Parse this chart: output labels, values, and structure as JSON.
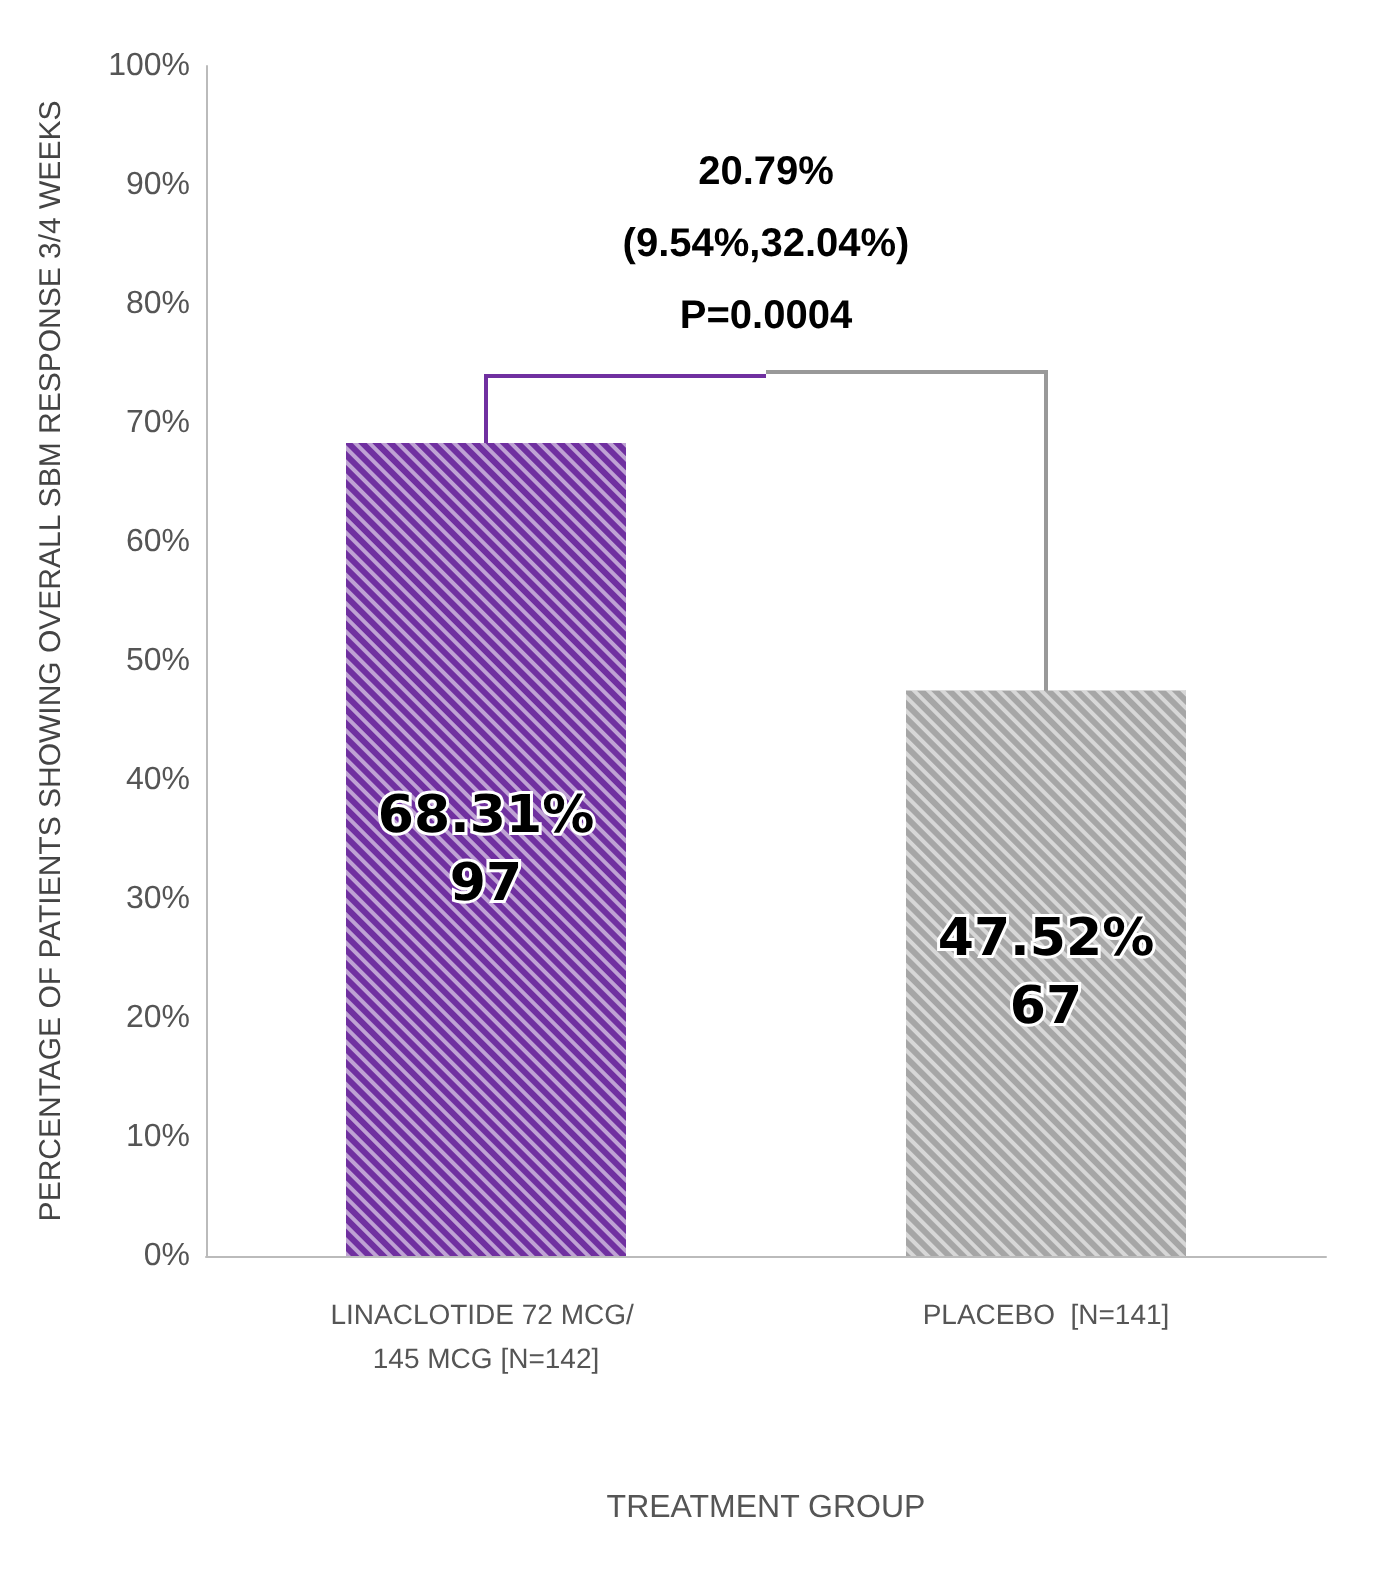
{
  "chart_data": {
    "type": "bar",
    "categories": [
      "LINACLOTIDE 72 MCG/ 145 MCG [N=142]",
      "PLACEBO  [N=141]"
    ],
    "values": [
      68.31,
      47.52
    ],
    "colors": [
      "#7030a0",
      "#a6a6a6"
    ],
    "value_labels": [
      "68.31%\n97",
      "47.52%\n67"
    ],
    "xlabel": "TREATMENT GROUP",
    "ylabel": "PERCENTAGE OF PATIENTS SHOWING OVERALL SBM RESPONSE 3/4 WEEKS",
    "ylim": [
      0,
      100
    ],
    "yticks": [
      {
        "value": 0,
        "label": "0%"
      },
      {
        "value": 10,
        "label": "10%"
      },
      {
        "value": 20,
        "label": "20%"
      },
      {
        "value": 30,
        "label": "30%"
      },
      {
        "value": 40,
        "label": "40%"
      },
      {
        "value": 50,
        "label": "50%"
      },
      {
        "value": 60,
        "label": "60%"
      },
      {
        "value": 70,
        "label": "70%"
      },
      {
        "value": 80,
        "label": "80%"
      },
      {
        "value": 90,
        "label": "90%"
      },
      {
        "value": 100,
        "label": "100%"
      }
    ],
    "annotations": [
      "20.79%\n(9.54%,32.04%)\nP=0.0004"
    ],
    "grid": false
  }
}
